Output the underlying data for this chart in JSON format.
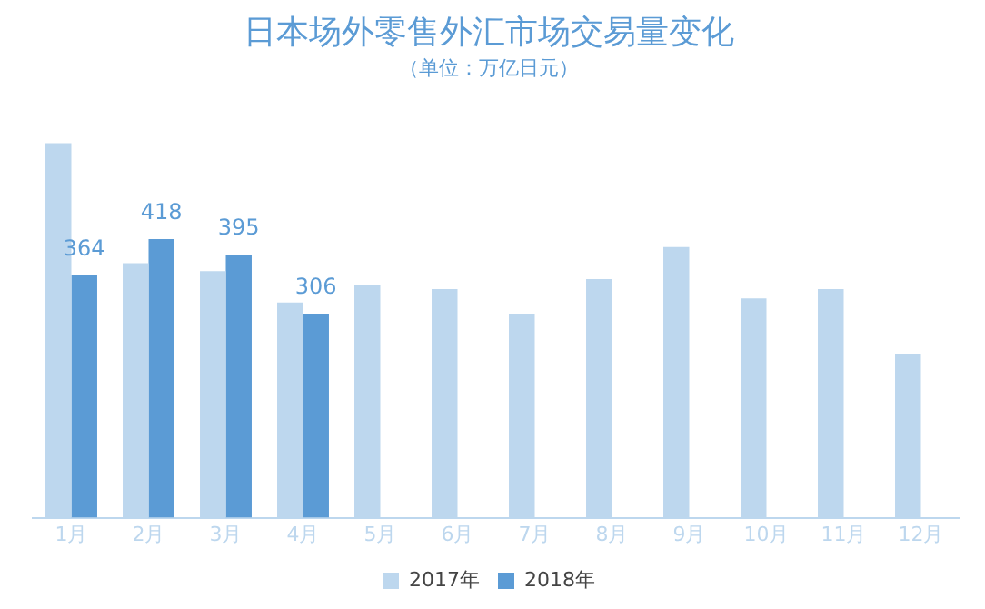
{
  "chart_data": {
    "type": "bar",
    "title": "日本场外零售外汇市场交易量变化",
    "subtitle": "（单位：万亿日元）",
    "categories": [
      "1月",
      "2月",
      "3月",
      "4月",
      "5月",
      "6月",
      "7月",
      "8月",
      "9月",
      "10月",
      "11月",
      "12月"
    ],
    "series": [
      {
        "name": "2017年",
        "color": "#bdd7ee",
        "values": [
          562,
          382,
          370,
          323,
          349,
          343,
          305,
          358,
          406,
          329,
          343,
          246
        ]
      },
      {
        "name": "2018年",
        "color": "#5b9bd5",
        "values": [
          364,
          418,
          395,
          306,
          null,
          null,
          null,
          null,
          null,
          null,
          null,
          null
        ],
        "value_labels": [
          "364",
          "418",
          "395",
          "306",
          null,
          null,
          null,
          null,
          null,
          null,
          null,
          null
        ]
      }
    ],
    "tick_labels": "x",
    "grid": false,
    "legend": "bottom"
  }
}
